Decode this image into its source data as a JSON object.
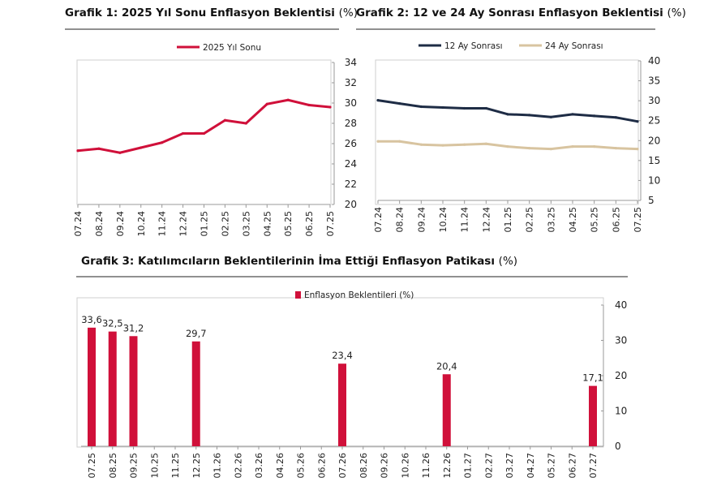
{
  "chart_titles": {
    "c1_main": "Grafik 1: 2025 Yıl Sonu Enflasyon Beklentisi",
    "c1_unit": "(%)",
    "c2_main": "Grafik 2: 12 ve 24 Ay Sonrası Enflasyon Beklentisi",
    "c2_unit": "(%)",
    "c3_main": "Grafik 3: Katılımcıların Beklentilerinin İma Ettiği Enflasyon Patikası",
    "c3_unit": "(%)"
  },
  "colors": {
    "crimson": "#d0103a",
    "navy": "#1e2c45",
    "tan": "#d8c4a0",
    "axis": "#999999",
    "frame": "#cfcfcf"
  },
  "chart_data": [
    {
      "type": "line",
      "title": "Grafik 1: 2025 Yıl Sonu Enflasyon Beklentisi (%)",
      "categories": [
        "07.24",
        "08.24",
        "09.24",
        "10.24",
        "11.24",
        "12.24",
        "01.25",
        "02.25",
        "03.25",
        "04.25",
        "05.25",
        "06.25",
        "07.25"
      ],
      "series": [
        {
          "name": "2025 Yıl Sonu",
          "values": [
            25.3,
            25.5,
            25.1,
            25.6,
            26.1,
            27.0,
            27.0,
            28.3,
            28.0,
            29.9,
            30.3,
            29.8,
            29.6
          ]
        }
      ],
      "ylim": [
        20,
        34
      ],
      "yticks": [
        20,
        22,
        24,
        26,
        28,
        30,
        32,
        34
      ],
      "axis_side": "left",
      "legend": "top"
    },
    {
      "type": "line",
      "title": "Grafik 2: 12 ve 24 Ay Sonrası Enflasyon Beklentisi (%)",
      "categories": [
        "07.24",
        "08.24",
        "09.24",
        "10.24",
        "11.24",
        "12.24",
        "01.25",
        "02.25",
        "03.25",
        "04.25",
        "05.25",
        "06.25",
        "07.25"
      ],
      "series": [
        {
          "name": "12 Ay Sonrası",
          "values": [
            30.1,
            29.3,
            28.5,
            28.3,
            28.1,
            28.1,
            26.6,
            26.4,
            25.9,
            26.6,
            26.2,
            25.8,
            24.8
          ]
        },
        {
          "name": "24 Ay Sonrası",
          "values": [
            19.8,
            19.8,
            19.0,
            18.8,
            19.0,
            19.2,
            18.5,
            18.1,
            17.9,
            18.5,
            18.5,
            18.1,
            17.9
          ]
        }
      ],
      "ylim": [
        5,
        40
      ],
      "yticks": [
        5,
        10,
        15,
        20,
        25,
        30,
        35,
        40
      ],
      "axis_side": "right",
      "legend": "top"
    },
    {
      "type": "bar",
      "title": "Grafik 3: Katılımcıların Beklentilerinin İma Ettiği Enflasyon Patikası (%)",
      "categories": [
        "07.25",
        "08.25",
        "09.25",
        "10.25",
        "11.25",
        "12.25",
        "01.26",
        "02.26",
        "03.26",
        "04.26",
        "05.26",
        "06.26",
        "07.26",
        "08.26",
        "09.26",
        "10.26",
        "11.26",
        "12.26",
        "01.27",
        "02.27",
        "03.27",
        "04.27",
        "05.27",
        "06.27",
        "07.27"
      ],
      "series": [
        {
          "name": "Enflasyon Beklentileri (%)",
          "values": [
            33.6,
            32.5,
            31.2,
            null,
            null,
            29.7,
            null,
            null,
            null,
            null,
            null,
            null,
            23.4,
            null,
            null,
            null,
            null,
            20.4,
            null,
            null,
            null,
            null,
            null,
            null,
            17.1
          ]
        }
      ],
      "data_labels": [
        "33,6",
        "32,5",
        "31,2",
        "",
        "",
        "29,7",
        "",
        "",
        "",
        "",
        "",
        "",
        "23,4",
        "",
        "",
        "",
        "",
        "20,4",
        "",
        "",
        "",
        "",
        "",
        "",
        "17,1"
      ],
      "ylim": [
        0,
        40
      ],
      "yticks": [
        0,
        10,
        20,
        30,
        40
      ],
      "axis_side": "right",
      "legend": "top"
    }
  ]
}
